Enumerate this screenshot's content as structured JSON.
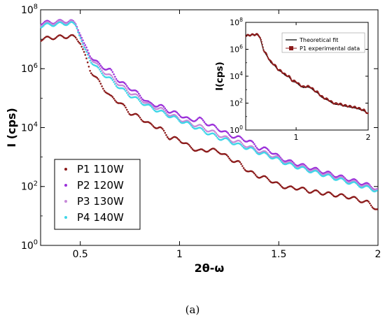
{
  "caption": "(a)",
  "chart_data": [
    {
      "name": "main",
      "type": "scatter",
      "title": "",
      "xlabel": "2θ-ω",
      "ylabel": "I (cps)",
      "xlim": [
        0.3,
        2.0
      ],
      "ylim_log10": [
        0,
        8
      ],
      "yscale": "log",
      "grid": false,
      "legend_position": "bottom-left",
      "x_ticks": [
        0.5,
        1,
        1.5,
        2
      ],
      "x_tick_labels": [
        "0.5",
        "1",
        "1.5",
        "2"
      ],
      "y_ticks_log10": [
        0,
        2,
        4,
        6,
        8
      ],
      "y_tick_labels": [
        {
          "base": "10",
          "exp": "0"
        },
        {
          "base": "10",
          "exp": "2"
        },
        {
          "base": "10",
          "exp": "4"
        },
        {
          "base": "10",
          "exp": "6"
        },
        {
          "base": "10",
          "exp": "8"
        }
      ],
      "series": [
        {
          "name": "P1 110W",
          "color": "#8b1a1a",
          "marker": "dot",
          "x": [
            0.3,
            0.35,
            0.4,
            0.45,
            0.48,
            0.5,
            0.52,
            0.55,
            0.6,
            0.65,
            0.7,
            0.75,
            0.8,
            0.85,
            0.9,
            0.95,
            1.0,
            1.05,
            1.1,
            1.15,
            1.2,
            1.25,
            1.3,
            1.35,
            1.4,
            1.45,
            1.5,
            1.55,
            1.6,
            1.65,
            1.7,
            1.75,
            1.8,
            1.85,
            1.9,
            1.95,
            2.0
          ],
          "y_log10": [
            7.0,
            7.05,
            7.08,
            7.1,
            7.05,
            6.9,
            6.5,
            5.95,
            5.5,
            5.05,
            4.85,
            4.5,
            4.35,
            4.1,
            4.0,
            3.65,
            3.6,
            3.35,
            3.2,
            3.25,
            3.2,
            2.95,
            2.8,
            2.5,
            2.35,
            2.25,
            2.05,
            1.95,
            1.95,
            1.85,
            1.8,
            1.75,
            1.7,
            1.65,
            1.55,
            1.45,
            1.2
          ]
        },
        {
          "name": "P2 120W",
          "color": "#9b30d9",
          "marker": "dot",
          "x": [
            0.3,
            0.35,
            0.4,
            0.45,
            0.48,
            0.5,
            0.52,
            0.55,
            0.6,
            0.65,
            0.7,
            0.75,
            0.8,
            0.85,
            0.9,
            0.95,
            1.0,
            1.05,
            1.1,
            1.15,
            1.2,
            1.25,
            1.3,
            1.35,
            1.4,
            1.45,
            1.5,
            1.55,
            1.6,
            1.65,
            1.7,
            1.75,
            1.8,
            1.85,
            1.9,
            1.95,
            2.0
          ],
          "y_log10": [
            7.55,
            7.58,
            7.6,
            7.62,
            7.5,
            7.2,
            6.8,
            6.45,
            6.1,
            5.95,
            5.55,
            5.35,
            5.1,
            4.8,
            4.75,
            4.55,
            4.45,
            4.25,
            4.3,
            4.1,
            3.95,
            3.75,
            3.65,
            3.55,
            3.3,
            3.25,
            3.0,
            2.85,
            2.75,
            2.65,
            2.55,
            2.45,
            2.35,
            2.25,
            2.15,
            2.05,
            1.9
          ]
        },
        {
          "name": "P3 130W",
          "color": "#c78ad9",
          "marker": "dot",
          "x": [
            0.3,
            0.35,
            0.4,
            0.45,
            0.48,
            0.5,
            0.52,
            0.55,
            0.6,
            0.65,
            0.7,
            0.75,
            0.8,
            0.85,
            0.9,
            0.95,
            1.0,
            1.05,
            1.1,
            1.15,
            1.2,
            1.25,
            1.3,
            1.35,
            1.4,
            1.45,
            1.5,
            1.55,
            1.6,
            1.65,
            1.7,
            1.75,
            1.8,
            1.85,
            1.9,
            1.95,
            2.0
          ],
          "y_log10": [
            7.5,
            7.55,
            7.58,
            7.6,
            7.48,
            7.15,
            6.7,
            6.4,
            6.0,
            5.75,
            5.45,
            5.2,
            5.0,
            4.75,
            4.65,
            4.45,
            4.3,
            4.15,
            4.05,
            3.9,
            3.75,
            3.6,
            3.5,
            3.35,
            3.2,
            3.1,
            2.95,
            2.8,
            2.7,
            2.6,
            2.5,
            2.4,
            2.3,
            2.2,
            2.1,
            2.0,
            1.9
          ]
        },
        {
          "name": "P4 140W",
          "color": "#3fd6e8",
          "marker": "dot",
          "x": [
            0.3,
            0.35,
            0.4,
            0.45,
            0.48,
            0.5,
            0.52,
            0.55,
            0.6,
            0.65,
            0.7,
            0.75,
            0.8,
            0.85,
            0.9,
            0.95,
            1.0,
            1.05,
            1.1,
            1.15,
            1.2,
            1.25,
            1.3,
            1.35,
            1.4,
            1.45,
            1.5,
            1.55,
            1.6,
            1.65,
            1.7,
            1.75,
            1.8,
            1.85,
            1.9,
            1.95,
            2.0
          ],
          "y_log10": [
            7.45,
            7.5,
            7.52,
            7.55,
            7.45,
            7.1,
            6.65,
            6.3,
            5.9,
            5.65,
            5.35,
            5.1,
            4.9,
            4.7,
            4.55,
            4.4,
            4.25,
            4.1,
            3.95,
            3.8,
            3.65,
            3.55,
            3.4,
            3.3,
            3.15,
            3.05,
            2.9,
            2.75,
            2.65,
            2.55,
            2.45,
            2.35,
            2.25,
            2.15,
            2.05,
            1.95,
            1.85
          ]
        }
      ]
    },
    {
      "name": "inset",
      "type": "line",
      "title": "",
      "xlabel": "",
      "ylabel": "I(cps)",
      "xlim": [
        0.3,
        2.0
      ],
      "ylim_log10": [
        0,
        8
      ],
      "yscale": "log",
      "grid": false,
      "legend_position": "top-right",
      "x_ticks": [
        1,
        2
      ],
      "x_tick_labels": [
        "1",
        "2"
      ],
      "y_ticks_log10": [
        0,
        2,
        4,
        6,
        8
      ],
      "y_tick_labels": [
        {
          "base": "10",
          "exp": "0"
        },
        {
          "base": "10",
          "exp": "2"
        },
        {
          "base": "10",
          "exp": "4"
        },
        {
          "base": "10",
          "exp": "6"
        },
        {
          "base": "10",
          "exp": "8"
        }
      ],
      "series": [
        {
          "name": "Theoretical fit",
          "color": "#000000",
          "style": "line",
          "x": [
            0.3,
            0.35,
            0.4,
            0.45,
            0.48,
            0.5,
            0.52,
            0.55,
            0.6,
            0.65,
            0.7,
            0.75,
            0.8,
            0.85,
            0.9,
            0.95,
            1.0,
            1.05,
            1.1,
            1.15,
            1.2,
            1.25,
            1.3,
            1.35,
            1.4,
            1.45,
            1.5,
            1.55,
            1.6,
            1.65,
            1.7,
            1.75,
            1.8,
            1.85,
            1.9,
            1.95,
            2.0
          ],
          "y_log10": [
            7.0,
            7.05,
            7.08,
            7.1,
            7.0,
            6.85,
            6.45,
            5.9,
            5.45,
            5.0,
            4.8,
            4.45,
            4.3,
            4.05,
            3.95,
            3.6,
            3.55,
            3.3,
            3.15,
            3.2,
            3.15,
            2.9,
            2.75,
            2.45,
            2.3,
            2.2,
            2.0,
            1.9,
            1.9,
            1.8,
            1.75,
            1.7,
            1.65,
            1.6,
            1.5,
            1.4,
            1.2
          ]
        },
        {
          "name": "P1 experimental data",
          "color": "#8b1a1a",
          "style": "marker",
          "x": [
            0.3,
            0.35,
            0.4,
            0.45,
            0.48,
            0.5,
            0.52,
            0.55,
            0.6,
            0.65,
            0.7,
            0.75,
            0.8,
            0.85,
            0.9,
            0.95,
            1.0,
            1.05,
            1.1,
            1.15,
            1.2,
            1.25,
            1.3,
            1.35,
            1.4,
            1.45,
            1.5,
            1.55,
            1.6,
            1.65,
            1.7,
            1.75,
            1.8,
            1.85,
            1.9,
            1.95,
            2.0
          ],
          "y_log10": [
            7.0,
            7.05,
            7.08,
            7.1,
            7.05,
            6.9,
            6.5,
            5.95,
            5.5,
            5.05,
            4.85,
            4.5,
            4.35,
            4.1,
            4.0,
            3.65,
            3.6,
            3.35,
            3.2,
            3.25,
            3.2,
            2.95,
            2.8,
            2.5,
            2.35,
            2.25,
            2.05,
            1.95,
            1.95,
            1.85,
            1.8,
            1.75,
            1.7,
            1.65,
            1.55,
            1.45,
            1.2
          ]
        }
      ]
    }
  ]
}
